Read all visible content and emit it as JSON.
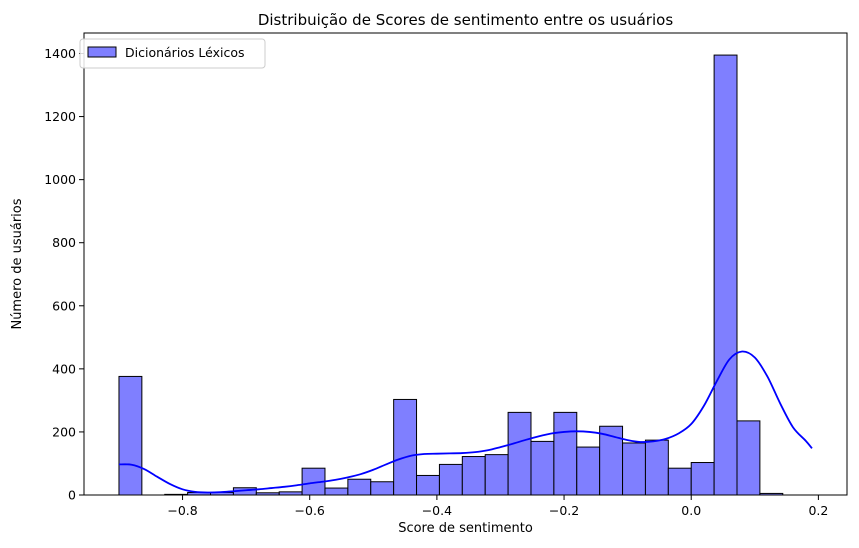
{
  "chart_data": {
    "type": "bar",
    "title": "Distribuição de Scores de sentimento entre os usuários",
    "xlabel": "Score de sentimento",
    "ylabel": "Número de usuários",
    "xlim": [
      -0.955,
      0.245
    ],
    "ylim": [
      0,
      1465
    ],
    "xticks": [
      -0.8,
      -0.6,
      -0.4,
      -0.2,
      0.0,
      0.2
    ],
    "xtick_labels": [
      "−0.8",
      "−0.6",
      "−0.4",
      "−0.2",
      "0.0",
      "0.2"
    ],
    "yticks": [
      0,
      200,
      400,
      600,
      800,
      1000,
      1200,
      1400
    ],
    "ytick_labels": [
      "0",
      "200",
      "400",
      "600",
      "800",
      "1000",
      "1200",
      "1400"
    ],
    "legend": {
      "label": "Dicionários Léxicos",
      "position": "upper-left"
    },
    "series": [
      {
        "name": "Dicionários Léxicos",
        "kind": "histogram",
        "bin_edges": [
          -0.9,
          -0.864,
          -0.828,
          -0.792,
          -0.756,
          -0.72,
          -0.684,
          -0.648,
          -0.612,
          -0.576,
          -0.54,
          -0.504,
          -0.468,
          -0.432,
          -0.396,
          -0.36,
          -0.324,
          -0.288,
          -0.252,
          -0.216,
          -0.18,
          -0.144,
          -0.108,
          -0.072,
          -0.036,
          0.0,
          0.036,
          0.072,
          0.108,
          0.144,
          0.18
        ],
        "values": [
          376,
          0,
          2,
          8,
          8,
          23,
          7,
          10,
          85,
          22,
          50,
          42,
          303,
          62,
          97,
          122,
          128,
          262,
          170,
          262,
          152,
          218,
          165,
          174,
          85,
          103,
          1395,
          235,
          5,
          0
        ],
        "fill_color": "#7f7fff",
        "edge_color": "#000000"
      },
      {
        "name": "Dicionários Léxicos",
        "kind": "kde",
        "x": [
          -0.9,
          -0.88,
          -0.86,
          -0.84,
          -0.82,
          -0.8,
          -0.78,
          -0.76,
          -0.74,
          -0.72,
          -0.7,
          -0.68,
          -0.66,
          -0.64,
          -0.62,
          -0.6,
          -0.58,
          -0.56,
          -0.54,
          -0.52,
          -0.5,
          -0.48,
          -0.46,
          -0.44,
          -0.42,
          -0.4,
          -0.38,
          -0.36,
          -0.34,
          -0.32,
          -0.3,
          -0.28,
          -0.26,
          -0.24,
          -0.22,
          -0.2,
          -0.18,
          -0.16,
          -0.14,
          -0.12,
          -0.1,
          -0.08,
          -0.06,
          -0.04,
          -0.02,
          0.0,
          0.02,
          0.04,
          0.06,
          0.08,
          0.1,
          0.12,
          0.14,
          0.16,
          0.18,
          0.19
        ],
        "y": [
          97,
          96,
          82,
          58,
          35,
          18,
          10,
          8,
          9,
          12,
          15,
          18,
          22,
          26,
          31,
          37,
          42,
          48,
          56,
          66,
          80,
          97,
          113,
          125,
          130,
          131,
          132,
          133,
          136,
          142,
          152,
          163,
          175,
          186,
          195,
          200,
          202,
          200,
          194,
          184,
          174,
          168,
          170,
          178,
          195,
          225,
          283,
          360,
          430,
          455,
          436,
          375,
          290,
          215,
          172,
          148
        ],
        "color": "#0000ff"
      }
    ]
  }
}
